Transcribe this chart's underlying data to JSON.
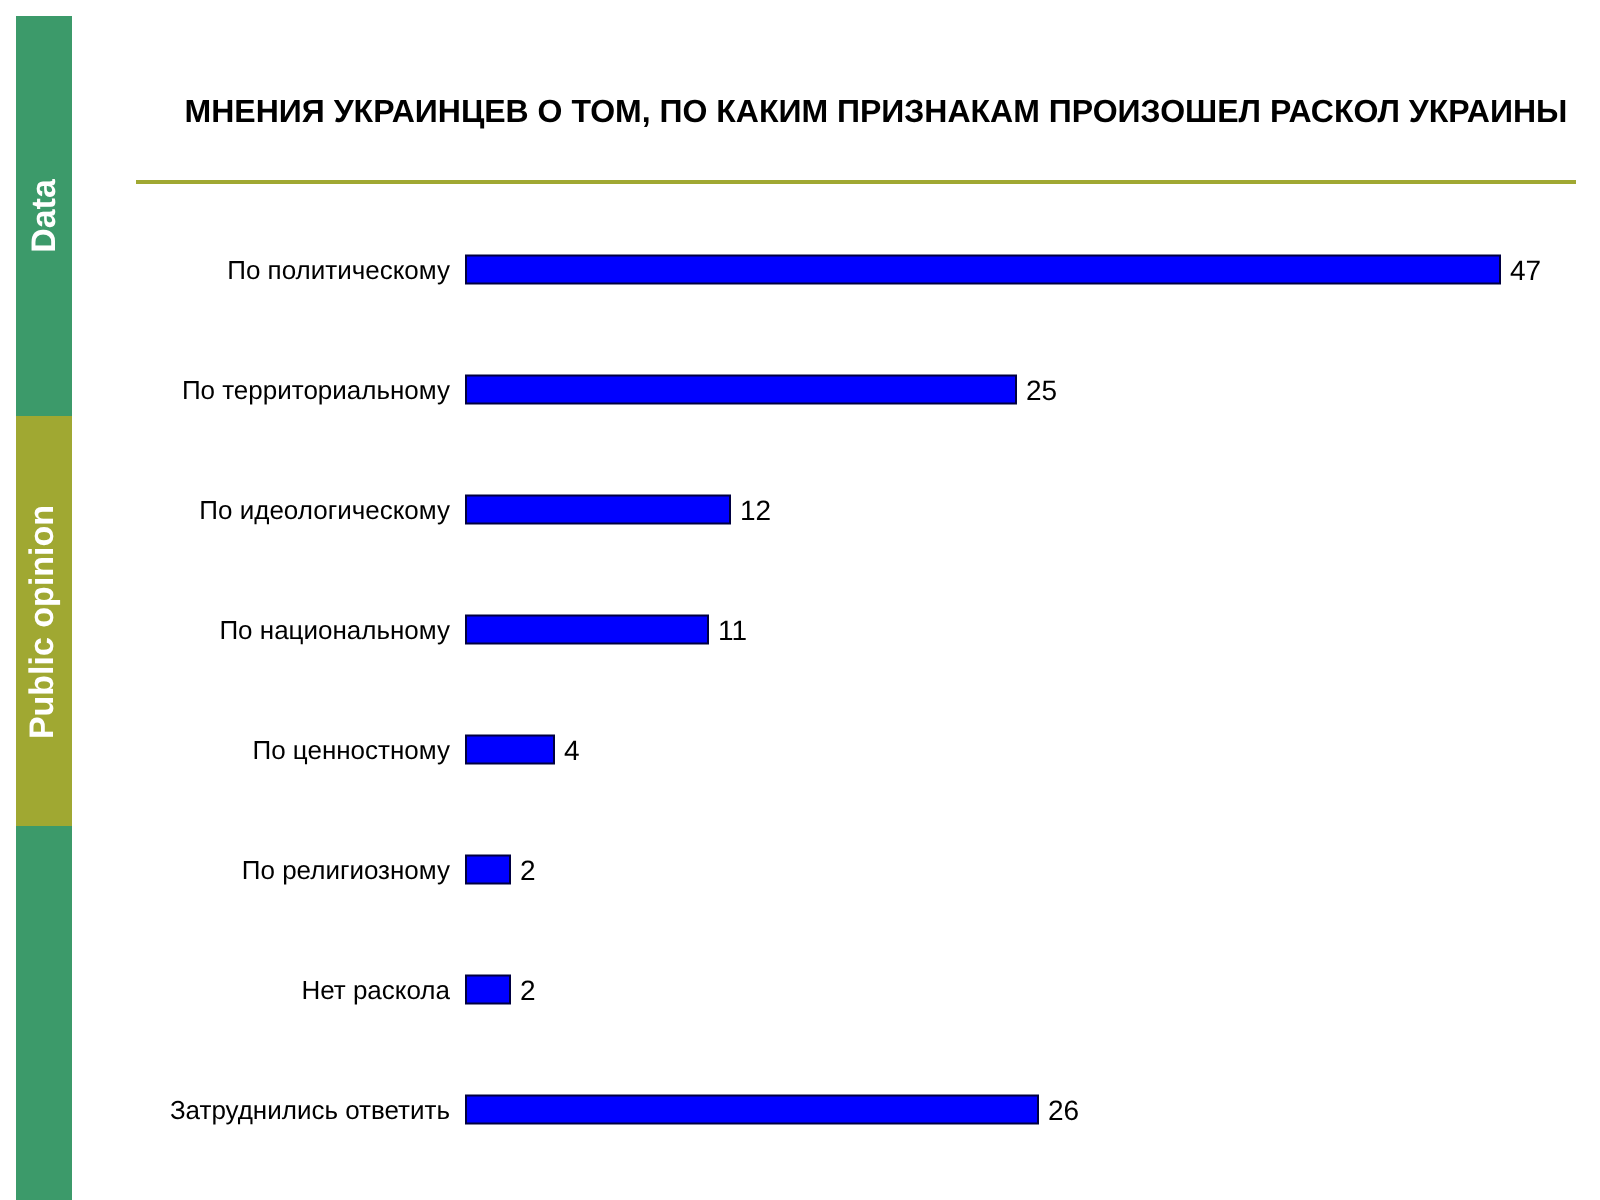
{
  "chart_data": {
    "type": "bar",
    "orientation": "horizontal",
    "title": "МНЕНИЯ УКРАИНЦЕВ О ТОМ, ПО КАКИМ ПРИЗНАКАМ ПРОИЗОШЕЛ РАСКОЛ УКРАИНЫ",
    "categories": [
      "По политическому",
      "По территориальному",
      "По идеологическому",
      "По национальному",
      "По ценностному",
      "По религиозному",
      "Нет раскола",
      "Затруднились ответить"
    ],
    "values": [
      47,
      25,
      12,
      11,
      4,
      2,
      2,
      26
    ],
    "color": "#0000ff",
    "data_labels": true,
    "grid": false,
    "legend": false,
    "annotations": [
      "Data",
      "Public opinion"
    ]
  }
}
